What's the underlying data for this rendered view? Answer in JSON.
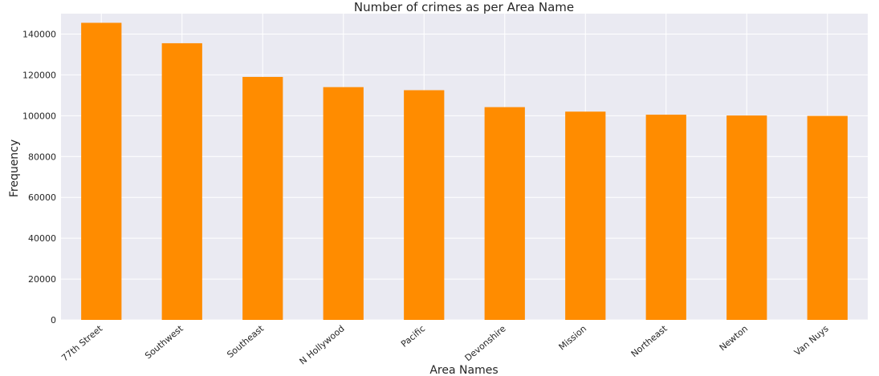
{
  "chart_data": {
    "type": "bar",
    "title": "Number of crimes as per Area Name",
    "xlabel": "Area Names",
    "ylabel": "Frequency",
    "categories": [
      "77th Street",
      "Southwest",
      "Southeast",
      "N Hollywood",
      "Pacific",
      "Devonshire",
      "Mission",
      "Northeast",
      "Newton",
      "Van Nuys"
    ],
    "values": [
      145500,
      135500,
      119000,
      114000,
      112500,
      104200,
      102000,
      100500,
      100100,
      99900
    ],
    "ylim": [
      0,
      150000
    ],
    "yticks": [
      "0",
      "20000",
      "40000",
      "60000",
      "80000",
      "100000",
      "120000",
      "140000"
    ],
    "grid": true,
    "legend": "none",
    "colors": {
      "bar": "#ff8c00",
      "background": "#eaeaf2",
      "grid": "#ffffff",
      "text": "#262626"
    }
  }
}
